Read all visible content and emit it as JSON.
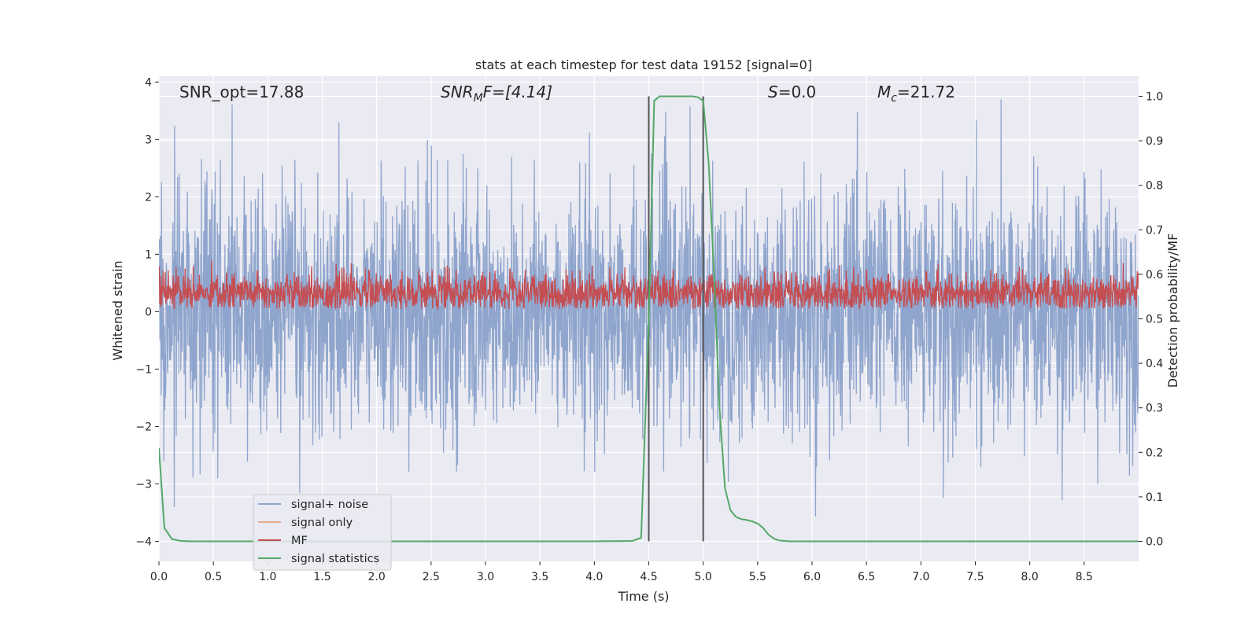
{
  "chart_data": {
    "type": "line",
    "title": "stats at each timestep for test data 19152 [signal=0]",
    "xlabel": "Time (s)",
    "ylabel_left": "Whitened strain",
    "ylabel_right": "Detection probability/MF",
    "xlim": [
      0,
      9.0
    ],
    "ylim_left": [
      -4.35,
      4.1
    ],
    "ylim_right": [
      -0.045,
      1.045
    ],
    "x_ticks": [
      "0.0",
      "0.5",
      "1.0",
      "1.5",
      "2.0",
      "2.5",
      "3.0",
      "3.5",
      "4.0",
      "4.5",
      "5.0",
      "5.5",
      "6.0",
      "6.5",
      "7.0",
      "7.5",
      "8.0",
      "8.5"
    ],
    "y_ticks_left": [
      "4",
      "3",
      "2",
      "1",
      "0",
      "−1",
      "−2",
      "−3",
      "−4"
    ],
    "y_ticks_right": [
      "1.0",
      "0.9",
      "0.8",
      "0.7",
      "0.6",
      "0.5",
      "0.4",
      "0.3",
      "0.2",
      "0.1",
      "0.0"
    ],
    "grid": true,
    "legend_position": "lower-left",
    "annotations": {
      "snr_opt": "SNR_opt=17.88",
      "snr_mf_base": "SNR",
      "snr_mf_sub": "M",
      "snr_mf_rest": "F=[4.14]",
      "s_italic": "S",
      "s_rest": "=0.0",
      "mc_base": "M",
      "mc_sub": "c",
      "mc_rest": "=21.72"
    },
    "vlines": [
      4.5,
      5.0
    ],
    "series": [
      {
        "name": "signal+ noise",
        "color": "#8fa5cd",
        "description_range": [
          -3.6,
          3.7
        ]
      },
      {
        "name": "signal only",
        "color": "#e8a98c",
        "values": []
      },
      {
        "name": "MF",
        "color": "#c44e52",
        "description_range": [
          0.05,
          1.0
        ]
      },
      {
        "name": "signal statistics",
        "color": "#55a868",
        "axis": "right",
        "x": [
          0.0,
          0.05,
          0.12,
          0.2,
          0.3,
          0.5,
          1.0,
          2.0,
          3.0,
          4.0,
          4.35,
          4.43,
          4.5,
          4.55,
          4.6,
          4.7,
          4.8,
          4.9,
          4.95,
          5.0,
          5.05,
          5.1,
          5.15,
          5.2,
          5.25,
          5.3,
          5.35,
          5.4,
          5.45,
          5.5,
          5.55,
          5.6,
          5.65,
          5.7,
          5.75,
          5.8,
          6.0,
          7.0,
          8.0,
          9.0
        ],
        "y": [
          0.21,
          0.03,
          0.005,
          0.001,
          0.0,
          0.0,
          0.0,
          0.0,
          0.0,
          0.0,
          0.001,
          0.008,
          0.5,
          0.99,
          1.0,
          1.0,
          1.0,
          1.0,
          0.998,
          0.99,
          0.85,
          0.6,
          0.3,
          0.12,
          0.07,
          0.055,
          0.05,
          0.048,
          0.045,
          0.04,
          0.03,
          0.015,
          0.006,
          0.002,
          0.001,
          0.0,
          0.0,
          0.0,
          0.0,
          0.0
        ]
      }
    ]
  }
}
